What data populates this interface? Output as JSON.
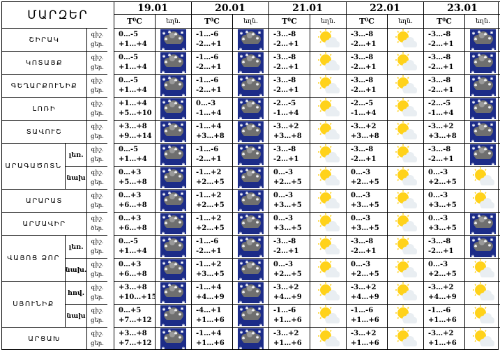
{
  "header": {
    "region_col_title": "ՄԱՐԶԵՐ",
    "temp_label": "T⁰C",
    "weather_label": "եղն.",
    "dates": [
      "19.01",
      "20.01",
      "21.01",
      "22.01",
      "23.01"
    ]
  },
  "colors": {
    "sun": "#ffd21a",
    "cloud_light": "#e9eef2",
    "cloud_dark": "#6f6f6f",
    "night_sky": "#1c2c88",
    "snowflake": "#ffffff"
  },
  "regions": [
    {
      "name": "ՇԻՐԱԿ",
      "rows": [
        {
          "sub": "",
          "day_night": [
            "գիշ.",
            "ցեր."
          ],
          "days": [
            {
              "night": "0…-5",
              "day": "+1…+4",
              "icon": "snow-cloud-night-icon"
            },
            {
              "night": "-1…-6",
              "day": "-2…+1",
              "icon": "snow-cloud-night-icon"
            },
            {
              "night": "-3…-8",
              "day": "-2…+1",
              "icon": "sun-cloud-icon"
            },
            {
              "night": "-3…-8",
              "day": "-2…+1",
              "icon": "sun-cloud-icon"
            },
            {
              "night": "-3…-8",
              "day": "-2…+1",
              "icon": "snow-cloud-night-icon"
            }
          ]
        }
      ]
    },
    {
      "name": "ԿՈՏԱՅՔ",
      "rows": [
        {
          "sub": "",
          "day_night": [
            "գիշ.",
            "ցեր."
          ],
          "days": [
            {
              "night": "0…-5",
              "day": "+1…+4",
              "icon": "snow-cloud-night-icon"
            },
            {
              "night": "-1…-6",
              "day": "-2…+1",
              "icon": "snow-cloud-night-icon"
            },
            {
              "night": "-3…-8",
              "day": "-2…+1",
              "icon": "sun-cloud-icon"
            },
            {
              "night": "-3…-8",
              "day": "-2…+1",
              "icon": "sun-cloud-icon"
            },
            {
              "night": "-3…-8",
              "day": "-2…+1",
              "icon": "snow-cloud-night-icon"
            }
          ]
        }
      ]
    },
    {
      "name": "ԳԵՂԱՐՔՈՒՆԻՔ",
      "rows": [
        {
          "sub": "",
          "day_night": [
            "գիշ.",
            "ցեր."
          ],
          "days": [
            {
              "night": "0…-5",
              "day": "+1…+4",
              "icon": "snow-cloud-night-icon"
            },
            {
              "night": "-1…-6",
              "day": "-2…+1",
              "icon": "snow-cloud-night-icon"
            },
            {
              "night": "-3…-8",
              "day": "-2…+1",
              "icon": "sun-cloud-icon"
            },
            {
              "night": "-3…-8",
              "day": "-2…+1",
              "icon": "sun-cloud-icon"
            },
            {
              "night": "-3…-8",
              "day": "-2…+1",
              "icon": "snow-cloud-night-icon"
            }
          ]
        }
      ]
    },
    {
      "name": "ԼՈՌԻ",
      "rows": [
        {
          "sub": "",
          "day_night": [
            "գիշ.",
            "ցեր."
          ],
          "days": [
            {
              "night": "+1…+4",
              "day": "+5…+10",
              "icon": "snow-cloud-night-icon"
            },
            {
              "night": "0…-3",
              "day": "-1…+4",
              "icon": "snow-cloud-night-icon"
            },
            {
              "night": "-2…-5",
              "day": "-1…+4",
              "icon": "sun-cloud-icon"
            },
            {
              "night": "-2…-5",
              "day": "-1…+4",
              "icon": "sun-cloud-icon"
            },
            {
              "night": "-2…-5",
              "day": "-1…+4",
              "icon": "snow-cloud-night-icon"
            }
          ]
        }
      ]
    },
    {
      "name": "ՏԱՎՈՒՇ",
      "rows": [
        {
          "sub": "",
          "day_night": [
            "գիշ.",
            "ցեր."
          ],
          "days": [
            {
              "night": "+3…+8",
              "day": "+9…+14",
              "icon": "snow-cloud-night-icon"
            },
            {
              "night": "-1…+4",
              "day": "+3…+8",
              "icon": "snow-cloud-night-icon"
            },
            {
              "night": "-3…+2",
              "day": "+3…+8",
              "icon": "sun-cloud-icon"
            },
            {
              "night": "-3…+2",
              "day": "+3…+8",
              "icon": "sun-cloud-icon"
            },
            {
              "night": "-3…+2",
              "day": "+3…+8",
              "icon": "snow-cloud-night-icon"
            }
          ]
        }
      ]
    },
    {
      "name": "ԱՐԱԳԱԾՈՏՆ",
      "rows": [
        {
          "sub": "լեռ.",
          "day_night": [
            "գիշ.",
            "ցեր."
          ],
          "days": [
            {
              "night": "0…-5",
              "day": "+1…+4",
              "icon": "snow-cloud-night-icon"
            },
            {
              "night": "-1…-6",
              "day": "-2…+1",
              "icon": "snow-cloud-night-icon"
            },
            {
              "night": "-3…-8",
              "day": "-2…+1",
              "icon": "sun-cloud-icon"
            },
            {
              "night": "-3…-8",
              "day": "-2…+1",
              "icon": "sun-cloud-icon"
            },
            {
              "night": "-3…-8",
              "day": "-2…+1",
              "icon": "snow-cloud-night-icon"
            }
          ]
        },
        {
          "sub": "նախ",
          "day_night": [
            "գիշ.",
            "ցեր."
          ],
          "days": [
            {
              "night": "0…+3",
              "day": "+5…+8",
              "icon": "snow-cloud-night-icon"
            },
            {
              "night": "-1…+2",
              "day": "+2…+5",
              "icon": "snow-cloud-night-icon"
            },
            {
              "night": "0…-3",
              "day": "+2…+5",
              "icon": "sun-cloud-icon"
            },
            {
              "night": "0…-3",
              "day": "+2…+5",
              "icon": "sun-cloud-icon"
            },
            {
              "night": "0…-3",
              "day": "+2…+5",
              "icon": "sun-cloud-icon"
            }
          ]
        }
      ]
    },
    {
      "name": "ԱՐԱՐԱՏ",
      "rows": [
        {
          "sub": "",
          "day_night": [
            "գիշ.",
            "ցեր."
          ],
          "days": [
            {
              "night": "0…+3",
              "day": "+6…+8",
              "icon": "snow-cloud-night-icon"
            },
            {
              "night": "-1…+2",
              "day": "+2…+5",
              "icon": "snow-cloud-night-icon"
            },
            {
              "night": "0…-3",
              "day": "+3…+5",
              "icon": "sun-cloud-icon"
            },
            {
              "night": "0…-3",
              "day": "+3…+5",
              "icon": "sun-cloud-icon"
            },
            {
              "night": "0…-3",
              "day": "+3…+5",
              "icon": "sun-cloud-icon"
            }
          ]
        }
      ]
    },
    {
      "name": "ԱՐՄԱՎԻՐ",
      "rows": [
        {
          "sub": "",
          "day_night": [
            "գիշ.",
            "ծեր."
          ],
          "days": [
            {
              "night": "0…+3",
              "day": "+6…+8",
              "icon": "snow-cloud-night-icon"
            },
            {
              "night": "-1…+2",
              "day": "+2…+5",
              "icon": "snow-cloud-night-icon"
            },
            {
              "night": "0…-3",
              "day": "+3…+5",
              "icon": "sun-cloud-icon"
            },
            {
              "night": "0…-3",
              "day": "+3…+5",
              "icon": "sun-cloud-icon"
            },
            {
              "night": "0…-3",
              "day": "+3…+5",
              "icon": "snow-cloud-night-icon"
            }
          ]
        }
      ]
    },
    {
      "name": "ՎԱՅՈՑ ՁՈՐ",
      "rows": [
        {
          "sub": "լեռ.",
          "day_night": [
            "գիշ.",
            "ցեր."
          ],
          "days": [
            {
              "night": "0…-5",
              "day": "+1…+4",
              "icon": "snow-cloud-night-icon"
            },
            {
              "night": "-1…-6",
              "day": "-2…+1",
              "icon": "snow-cloud-night-icon"
            },
            {
              "night": "-3…-8",
              "day": "-2…+1",
              "icon": "sun-cloud-icon"
            },
            {
              "night": "-3…-8",
              "day": "-2…+1",
              "icon": "sun-cloud-icon"
            },
            {
              "night": "-3…-8",
              "day": "-2…+1",
              "icon": "snow-cloud-night-icon"
            }
          ]
        },
        {
          "sub": "նախ.",
          "day_night": [
            "գիշ.",
            "ցեր."
          ],
          "days": [
            {
              "night": "0…+3",
              "day": "+6…+8",
              "icon": "snow-cloud-night-icon"
            },
            {
              "night": "-1…+2",
              "day": "+3…+5",
              "icon": "snow-cloud-night-icon"
            },
            {
              "night": "0…-3",
              "day": "+2…+5",
              "icon": "sun-cloud-icon"
            },
            {
              "night": "0…-3",
              "day": "+2…+5",
              "icon": "sun-cloud-icon"
            },
            {
              "night": "0…-3",
              "day": "+2…+5",
              "icon": "sun-cloud-icon"
            }
          ]
        }
      ]
    },
    {
      "name": "ՍՅՈՒՆԻՔ",
      "rows": [
        {
          "sub": "հով.",
          "day_night": [
            "գիշ.",
            "ցեր."
          ],
          "days": [
            {
              "night": "+3…+8",
              "day": "+10…+15",
              "icon": "snow-cloud-night-icon"
            },
            {
              "night": "-1…+4",
              "day": "+4…+9",
              "icon": "snow-cloud-night-icon"
            },
            {
              "night": "-3…+2",
              "day": "+4…+9",
              "icon": "sun-cloud-icon"
            },
            {
              "night": "-3…+2",
              "day": "+4…+9",
              "icon": "sun-cloud-icon"
            },
            {
              "night": "-3…+2",
              "day": "+4…+9",
              "icon": "sun-cloud-icon"
            }
          ]
        },
        {
          "sub": "նախ",
          "day_night": [
            "գիշ.",
            "ցեր."
          ],
          "days": [
            {
              "night": "0…+5",
              "day": "+7…+12",
              "icon": "snow-cloud-night-icon"
            },
            {
              "night": "-4…+1",
              "day": "+1…+6",
              "icon": "snow-cloud-night-icon"
            },
            {
              "night": "-1…-6",
              "day": "+1…+6",
              "icon": "sun-cloud-icon"
            },
            {
              "night": "-1…-6",
              "day": "+1…+6",
              "icon": "sun-cloud-icon"
            },
            {
              "night": "-1…-6",
              "day": "+1…+6",
              "icon": "sun-cloud-icon"
            }
          ]
        }
      ]
    },
    {
      "name": "ԱՐՑԱԽ",
      "rows": [
        {
          "sub": "",
          "day_night": [
            "գիշ.",
            "ցեր."
          ],
          "days": [
            {
              "night": "+3…+8",
              "day": "+7…+12",
              "icon": "snow-cloud-night-icon"
            },
            {
              "night": "-1…+4",
              "day": "+1…+6",
              "icon": "snow-cloud-night-icon"
            },
            {
              "night": "-3…+2",
              "day": "+1…+6",
              "icon": "sun-cloud-icon"
            },
            {
              "night": "-3…+2",
              "day": "+1…+6",
              "icon": "sun-cloud-icon"
            },
            {
              "night": "-3…+2",
              "day": "+1…+6",
              "icon": "sun-cloud-icon"
            }
          ]
        }
      ]
    }
  ]
}
